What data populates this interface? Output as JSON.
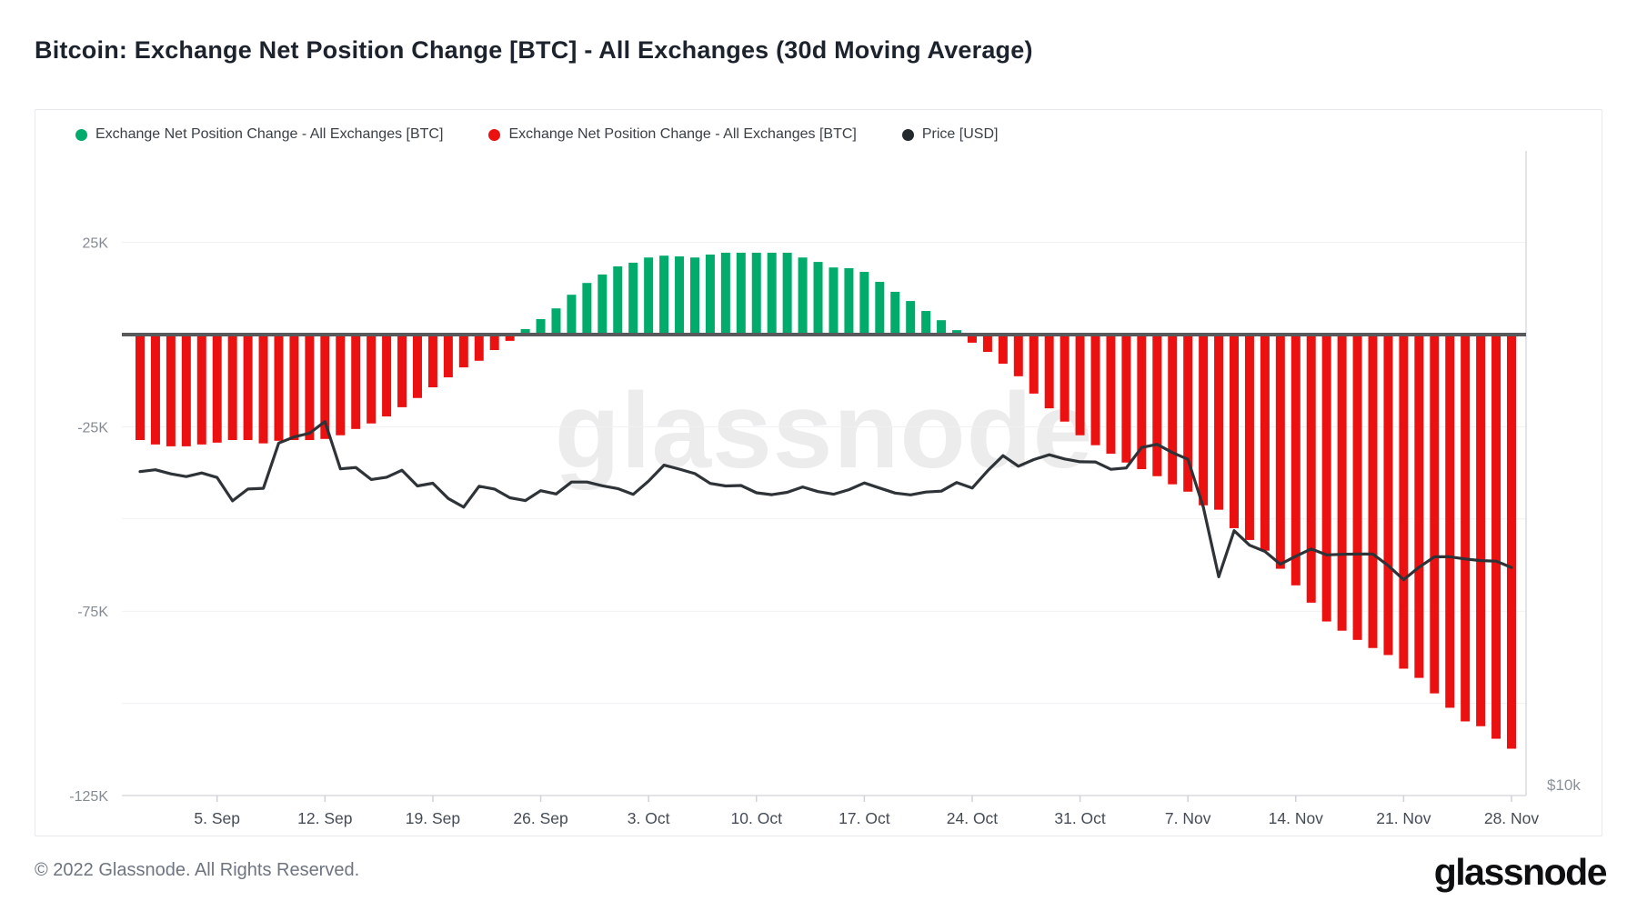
{
  "title": "Bitcoin: Exchange Net Position Change [BTC] - All Exchanges (30d Moving Average)",
  "watermark": "glassnode",
  "legend": [
    {
      "label": "Exchange Net Position Change - All Exchanges [BTC]",
      "color": "#00ab6b"
    },
    {
      "label": "Exchange Net Position Change - All Exchanges [BTC]",
      "color": "#ec1111"
    },
    {
      "label": "Price [USD]",
      "color": "#24292e"
    }
  ],
  "footer": {
    "copyright": "© 2022 Glassnode. All Rights Reserved.",
    "logo": "glassnode"
  },
  "chart_data": {
    "type": "bar+line",
    "title": "Bitcoin: Exchange Net Position Change [BTC] - All Exchanges (30d Moving Average)",
    "units": {
      "bars": "thousand BTC (30d moving average of exchange net position change)",
      "line": "USD"
    },
    "legend": [
      "Exchange Net Position Change - All Exchanges [BTC]",
      "Exchange Net Position Change - All Exchanges [BTC]",
      "Price [USD]"
    ],
    "y_axis": {
      "tick_labels": [
        "25K",
        "-25K",
        "-75K",
        "-125K"
      ],
      "tick_values_k": [
        25,
        -25,
        -75,
        -125
      ],
      "gridline_values_k": [
        25,
        -25,
        -50,
        -75,
        -100
      ],
      "min_k": -125,
      "max_k": 50,
      "grid": true
    },
    "y2_axis": {
      "visible_label": "$10k",
      "scale": "log"
    },
    "x_axis": {
      "tick_labels": [
        "5. Sep",
        "12. Sep",
        "19. Sep",
        "26. Sep",
        "3. Oct",
        "10. Oct",
        "17. Oct",
        "24. Oct",
        "31. Oct",
        "7. Nov",
        "14. Nov",
        "21. Nov",
        "28. Nov"
      ],
      "tick_day_index": [
        5,
        12,
        19,
        26,
        33,
        40,
        47,
        54,
        61,
        68,
        75,
        82,
        89
      ]
    },
    "dates": [
      "2022-08-31",
      "2022-09-01",
      "2022-09-02",
      "2022-09-03",
      "2022-09-04",
      "2022-09-05",
      "2022-09-06",
      "2022-09-07",
      "2022-09-08",
      "2022-09-09",
      "2022-09-10",
      "2022-09-11",
      "2022-09-12",
      "2022-09-13",
      "2022-09-14",
      "2022-09-15",
      "2022-09-16",
      "2022-09-17",
      "2022-09-18",
      "2022-09-19",
      "2022-09-20",
      "2022-09-21",
      "2022-09-22",
      "2022-09-23",
      "2022-09-24",
      "2022-09-25",
      "2022-09-26",
      "2022-09-27",
      "2022-09-28",
      "2022-09-29",
      "2022-09-30",
      "2022-10-01",
      "2022-10-02",
      "2022-10-03",
      "2022-10-04",
      "2022-10-05",
      "2022-10-06",
      "2022-10-07",
      "2022-10-08",
      "2022-10-09",
      "2022-10-10",
      "2022-10-11",
      "2022-10-12",
      "2022-10-13",
      "2022-10-14",
      "2022-10-15",
      "2022-10-16",
      "2022-10-17",
      "2022-10-18",
      "2022-10-19",
      "2022-10-20",
      "2022-10-21",
      "2022-10-22",
      "2022-10-23",
      "2022-10-24",
      "2022-10-25",
      "2022-10-26",
      "2022-10-27",
      "2022-10-28",
      "2022-10-29",
      "2022-10-30",
      "2022-10-31",
      "2022-11-01",
      "2022-11-02",
      "2022-11-03",
      "2022-11-04",
      "2022-11-05",
      "2022-11-06",
      "2022-11-07",
      "2022-11-08",
      "2022-11-09",
      "2022-11-10",
      "2022-11-11",
      "2022-11-12",
      "2022-11-13",
      "2022-11-14",
      "2022-11-15",
      "2022-11-16",
      "2022-11-17",
      "2022-11-18",
      "2022-11-19",
      "2022-11-20",
      "2022-11-21",
      "2022-11-22",
      "2022-11-23",
      "2022-11-24",
      "2022-11-25",
      "2022-11-26",
      "2022-11-27",
      "2022-11-28"
    ],
    "net_position_change_k_btc": [
      -28.6,
      -29.8,
      -30.3,
      -30.3,
      -29.8,
      -29.3,
      -28.6,
      -28.6,
      -29.5,
      -28.8,
      -28.6,
      -28.6,
      -28.3,
      -27.3,
      -25.6,
      -24.1,
      -22.2,
      -19.7,
      -17.2,
      -14.3,
      -11.6,
      -8.9,
      -7.1,
      -4.2,
      -1.7,
      1.5,
      4.2,
      7.1,
      10.8,
      14.0,
      16.3,
      18.5,
      19.5,
      20.9,
      21.4,
      21.2,
      20.9,
      21.7,
      22.2,
      22.2,
      22.2,
      22.2,
      22.2,
      20.9,
      19.7,
      18.2,
      18.0,
      17.0,
      14.3,
      11.6,
      9.1,
      6.4,
      3.9,
      1.2,
      -2.2,
      -4.7,
      -7.9,
      -11.3,
      -16.0,
      -20.0,
      -23.6,
      -27.3,
      -30.0,
      -32.3,
      -34.7,
      -36.5,
      -38.4,
      -40.6,
      -42.6,
      -46.3,
      -47.5,
      -52.5,
      -55.7,
      -58.6,
      -63.5,
      -68.0,
      -72.7,
      -77.8,
      -80.3,
      -82.8,
      -85.0,
      -86.9,
      -90.6,
      -93.1,
      -97.3,
      -101.2,
      -104.9,
      -106.2,
      -109.6,
      -112.3
    ],
    "price_usd": [
      20050,
      20130,
      19950,
      19830,
      19990,
      19790,
      18790,
      19290,
      19320,
      21360,
      21650,
      21830,
      22400,
      20170,
      20230,
      19700,
      19800,
      20110,
      19420,
      19540,
      18890,
      18530,
      19410,
      19290,
      18920,
      18800,
      19220,
      19080,
      19590,
      19590,
      19430,
      19310,
      19060,
      19630,
      20340,
      20160,
      19960,
      19530,
      19420,
      19440,
      19130,
      19050,
      19150,
      19380,
      19180,
      19070,
      19260,
      19550,
      19330,
      19120,
      19040,
      19160,
      19200,
      19570,
      19330,
      20080,
      20770,
      20290,
      20590,
      20810,
      20620,
      20490,
      20480,
      20150,
      20210,
      21150,
      21300,
      20910,
      20600,
      18540,
      15880,
      17590,
      17030,
      16800,
      16330,
      16620,
      16890,
      16670,
      16690,
      16700,
      16700,
      16280,
      15780,
      16220,
      16600,
      16600,
      16520,
      16460,
      16440,
      16210
    ],
    "colors": {
      "positive_bar": "#00ab6b",
      "negative_bar": "#ec1111",
      "price_line": "#2e3338",
      "zero_line": "#58595b",
      "grid": "#f0f1f4",
      "axis_line": "#d8dbdf",
      "tick_mark": "#cfd3d8",
      "y_label": "#858b94",
      "x_label": "#454c55",
      "watermark": "#ececec"
    }
  }
}
